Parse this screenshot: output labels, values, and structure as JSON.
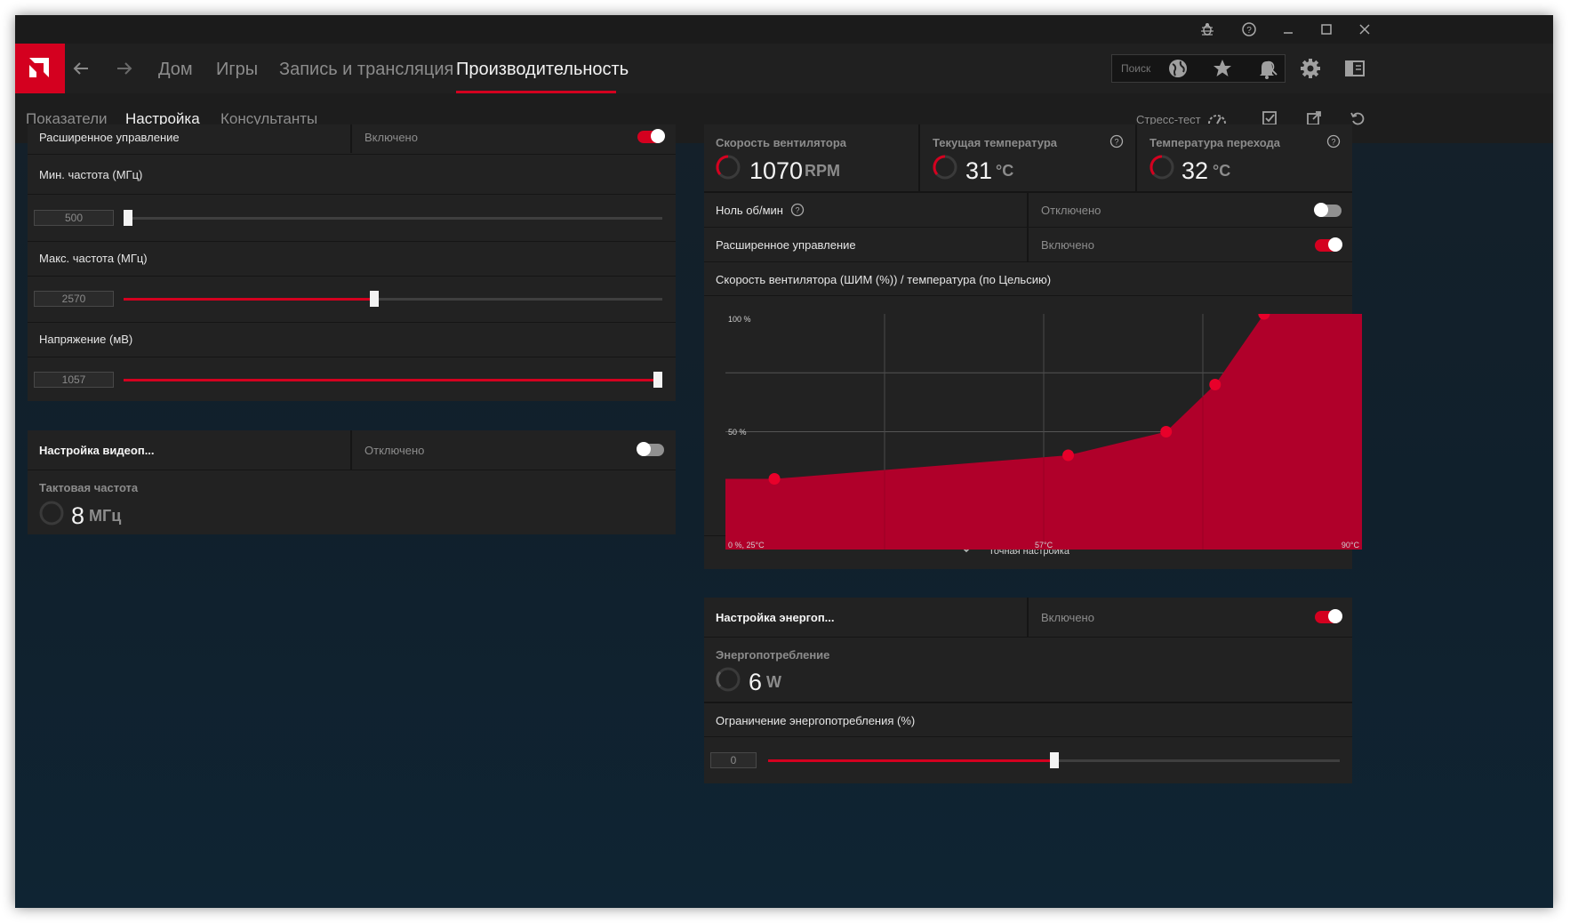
{
  "window": {
    "controls": [
      "bug-icon",
      "help-icon",
      "minimize-icon",
      "maximize-icon",
      "close-icon"
    ]
  },
  "nav": {
    "items": [
      {
        "label": "Дом"
      },
      {
        "label": "Игры"
      },
      {
        "label": "Запись и трансляция"
      },
      {
        "label": "Производительность"
      }
    ],
    "active_index": 3,
    "search_placeholder": "Поиск"
  },
  "subnav": {
    "tabs": [
      {
        "label": "Показатели"
      },
      {
        "label": "Настройка"
      },
      {
        "label": "Консультанты"
      }
    ],
    "active_index": 1,
    "stress_test": "Стресс-тест"
  },
  "gpu_panel": {
    "advanced": {
      "label": "Расширенное управление",
      "state": "Включено",
      "on": true
    },
    "min_freq": {
      "label": "Мин. частота (МГц)",
      "value": "500",
      "fraction": 0.0
    },
    "max_freq": {
      "label": "Макс. частота (МГц)",
      "value": "2570",
      "fraction": 0.465
    },
    "voltage": {
      "label": "Напряжение (мВ)",
      "value": "1057",
      "fraction": 1.0
    }
  },
  "vram_panel": {
    "title": "Настройка видеоп...",
    "state": "Отключено",
    "on": false,
    "clock_label": "Тактовая частота",
    "clock_value": "8",
    "clock_unit": "МГц"
  },
  "fan_panel": {
    "fan_speed": {
      "label": "Скорость вентилятора",
      "value": "1070",
      "unit": "RPM"
    },
    "cur_temp": {
      "label": "Текущая температура",
      "value": "31",
      "unit": "°C"
    },
    "junction_temp": {
      "label": "Температура перехода",
      "value": "32",
      "unit": "°C"
    },
    "zero_rpm": {
      "label": "Ноль об/мин",
      "state": "Отключено",
      "on": false
    },
    "advanced": {
      "label": "Расширенное управление",
      "state": "Включено",
      "on": true
    },
    "curve_title": "Скорость вентилятора (ШИМ (%)) / температура (по Цельсию)",
    "fine_tune": "Точная настройка"
  },
  "power_panel": {
    "title": "Настройка энергоп...",
    "state": "Включено",
    "on": true,
    "consumption_label": "Энергопотребление",
    "consumption_value": "6",
    "consumption_unit": "W",
    "limit_label": "Ограничение энергопотребления (%)",
    "limit_value": "0",
    "limit_fraction": 0.5
  },
  "chart_data": {
    "type": "area",
    "title": "Скорость вентилятора (ШИМ (%)) / температура (по Цельсию)",
    "xlabel": "",
    "ylabel": "",
    "x_tick_labels": [
      "0 %, 25°C",
      "57°C",
      "90°C"
    ],
    "y_tick_labels": [
      "100 %",
      "50 %"
    ],
    "xlim": [
      25,
      90
    ],
    "ylim": [
      0,
      100
    ],
    "grid": true,
    "series": [
      {
        "x": [
          25,
          30,
          60,
          70,
          75,
          80,
          90
        ],
        "y": [
          30,
          30,
          40,
          50,
          70,
          100,
          100
        ]
      }
    ],
    "control_points_x": [
      30,
      60,
      70,
      75,
      80
    ],
    "colors": {
      "fill": "#b0002a",
      "point": "#e8002a",
      "grid": "#555555"
    }
  },
  "colors": {
    "accent": "#d4001f",
    "panel": "#222222",
    "header": "#202020"
  }
}
